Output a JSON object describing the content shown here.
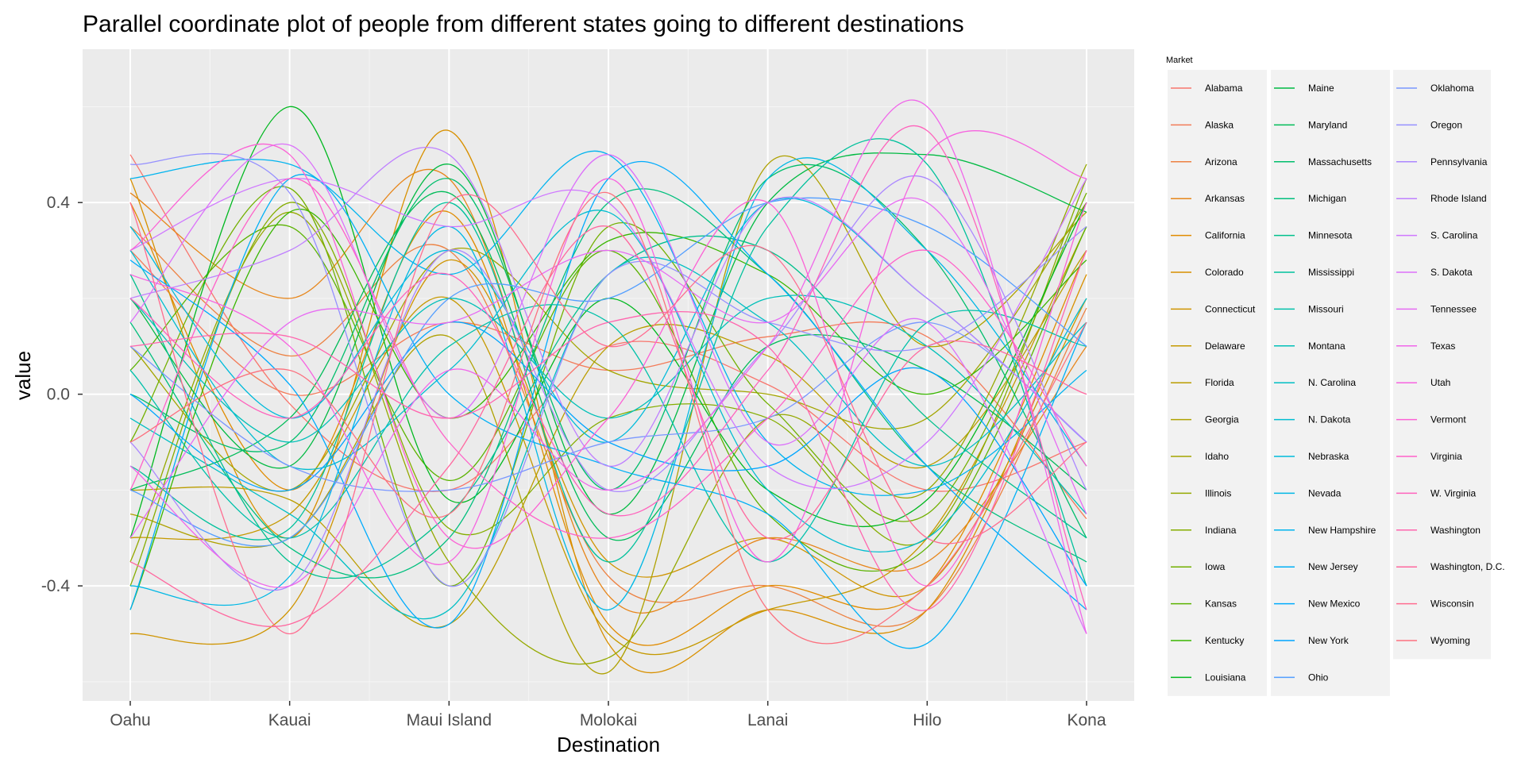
{
  "chart_data": {
    "type": "line",
    "title": "Parallel coordinate plot of people from different states going to different destinations",
    "xlabel": "Destination",
    "ylabel": "value",
    "categories": [
      "Oahu",
      "Kauai",
      "Maui Island",
      "Molokai",
      "Lanai",
      "Hilo",
      "Kona"
    ],
    "ylim": [
      -0.64,
      0.72
    ],
    "yticks": [
      -0.4,
      0.0,
      0.4
    ],
    "ytick_labels": [
      "-0.4",
      "0.0",
      "0.4"
    ],
    "grid": true,
    "legend_title": "Market",
    "legend_position": "right",
    "series": [
      {
        "name": "Alabama",
        "values": [
          0.5,
          -0.02,
          -0.2,
          0.1,
          0.02,
          -0.2,
          -0.1
        ]
      },
      {
        "name": "Alaska",
        "values": [
          0.3,
          0.0,
          0.15,
          0.05,
          0.12,
          0.12,
          -0.26
        ]
      },
      {
        "name": "Arizona",
        "values": [
          0.35,
          0.08,
          0.3,
          -0.38,
          -0.4,
          -0.45,
          0.18
        ]
      },
      {
        "name": "Arkansas",
        "values": [
          0.42,
          0.2,
          0.45,
          -0.42,
          -0.3,
          -0.35,
          0.1
        ]
      },
      {
        "name": "California",
        "values": [
          0.4,
          -0.2,
          0.38,
          -0.48,
          -0.4,
          -0.4,
          0.3
        ]
      },
      {
        "name": "Colorado",
        "values": [
          0.45,
          -0.3,
          0.55,
          -0.52,
          -0.45,
          -0.45,
          0.25
        ]
      },
      {
        "name": "Connecticut",
        "values": [
          -0.5,
          -0.45,
          0.28,
          -0.35,
          -0.3,
          -0.4,
          0.2
        ]
      },
      {
        "name": "Delaware",
        "values": [
          -0.3,
          -0.25,
          0.2,
          -0.5,
          -0.45,
          -0.3,
          0.35
        ]
      },
      {
        "name": "Florida",
        "values": [
          -0.2,
          -0.22,
          -0.48,
          0.1,
          0.08,
          -0.15,
          0.3
        ]
      },
      {
        "name": "Georgia",
        "values": [
          -0.25,
          -0.3,
          0.12,
          -0.58,
          0.48,
          0.1,
          0.38
        ]
      },
      {
        "name": "Idaho",
        "values": [
          0.1,
          -0.2,
          0.3,
          0.05,
          0.0,
          -0.05,
          0.4
        ]
      },
      {
        "name": "Illinois",
        "values": [
          -0.35,
          0.38,
          -0.35,
          -0.55,
          -0.05,
          -0.2,
          0.48
        ]
      },
      {
        "name": "Indiana",
        "values": [
          -0.4,
          0.4,
          -0.28,
          -0.05,
          -0.05,
          -0.3,
          0.45
        ]
      },
      {
        "name": "Iowa",
        "values": [
          -0.1,
          0.43,
          -0.4,
          0.35,
          -0.02,
          -0.25,
          0.42
        ]
      },
      {
        "name": "Kansas",
        "values": [
          0.05,
          0.35,
          -0.18,
          0.3,
          -0.25,
          -0.32,
          0.35
        ]
      },
      {
        "name": "Kentucky",
        "values": [
          -0.45,
          0.38,
          -0.05,
          0.32,
          0.25,
          0.0,
          0.28
        ]
      },
      {
        "name": "Louisiana",
        "values": [
          -0.3,
          0.6,
          -0.22,
          0.2,
          -0.2,
          -0.22,
          0.4
        ]
      },
      {
        "name": "Maine",
        "values": [
          0.2,
          -0.15,
          0.48,
          -0.25,
          0.4,
          0.5,
          0.38
        ]
      },
      {
        "name": "Maryland",
        "values": [
          -0.2,
          -0.05,
          0.42,
          -0.3,
          0.1,
          0.05,
          -0.2
        ]
      },
      {
        "name": "Massachusetts",
        "values": [
          0.0,
          -0.1,
          0.45,
          -0.2,
          0.45,
          0.3,
          -0.3
        ]
      },
      {
        "name": "Michigan",
        "values": [
          0.15,
          -0.32,
          -0.3,
          0.4,
          0.25,
          -0.15,
          -0.35
        ]
      },
      {
        "name": "Minnesota",
        "values": [
          0.25,
          -0.35,
          -0.25,
          0.25,
          0.3,
          -0.05,
          -0.3
        ]
      },
      {
        "name": "Mississippi",
        "values": [
          -0.15,
          -0.28,
          0.4,
          -0.35,
          0.35,
          0.48,
          -0.4
        ]
      },
      {
        "name": "Missouri",
        "values": [
          0.05,
          -0.3,
          0.1,
          0.15,
          -0.35,
          0.15,
          0.1
        ]
      },
      {
        "name": "Montana",
        "values": [
          0.2,
          -0.1,
          0.2,
          -0.05,
          0.2,
          0.1,
          -0.25
        ]
      },
      {
        "name": "N. Carolina",
        "values": [
          -0.05,
          -0.25,
          -0.45,
          0.25,
          0.15,
          -0.15,
          0.15
        ]
      },
      {
        "name": "N. Dakota",
        "values": [
          0.3,
          -0.15,
          0.05,
          0.38,
          -0.2,
          -0.3,
          0.2
        ]
      },
      {
        "name": "Nebraska",
        "values": [
          0.35,
          -0.05,
          0.3,
          -0.1,
          0.4,
          0.2,
          -0.1
        ]
      },
      {
        "name": "Nevada",
        "values": [
          -0.4,
          -0.38,
          0.35,
          -0.45,
          0.45,
          0.3,
          -0.15
        ]
      },
      {
        "name": "New Hampshire",
        "values": [
          0.45,
          0.48,
          0.25,
          0.5,
          -0.1,
          -0.2,
          0.05
        ]
      },
      {
        "name": "New Jersey",
        "values": [
          -0.45,
          0.45,
          0.0,
          -0.15,
          -0.25,
          -0.52,
          0.15
        ]
      },
      {
        "name": "New Mexico",
        "values": [
          0.28,
          0.02,
          -0.48,
          0.45,
          0.25,
          -0.15,
          -0.45
        ]
      },
      {
        "name": "New York",
        "values": [
          0.0,
          -0.2,
          0.15,
          -0.1,
          -0.15,
          0.05,
          -0.4
        ]
      },
      {
        "name": "Ohio",
        "values": [
          -0.2,
          -0.3,
          0.2,
          0.2,
          0.4,
          0.35,
          0.1
        ]
      },
      {
        "name": "Oklahoma",
        "values": [
          0.1,
          -0.15,
          -0.2,
          -0.1,
          -0.05,
          0.15,
          -0.1
        ]
      },
      {
        "name": "Oregon",
        "values": [
          0.48,
          0.42,
          -0.4,
          0.25,
          0.15,
          0.1,
          0.35
        ]
      },
      {
        "name": "Pennsylvania",
        "values": [
          -0.1,
          -0.4,
          0.3,
          -0.2,
          0.1,
          0.45,
          -0.2
        ]
      },
      {
        "name": "Rhode Island",
        "values": [
          0.2,
          0.3,
          0.5,
          -0.15,
          0.4,
          0.2,
          -0.1
        ]
      },
      {
        "name": "S. Carolina",
        "values": [
          0.3,
          0.45,
          0.35,
          0.4,
          -0.15,
          -0.1,
          0.45
        ]
      },
      {
        "name": "S. Dakota",
        "values": [
          0.15,
          0.52,
          -0.05,
          0.5,
          -0.1,
          0.15,
          -0.5
        ]
      },
      {
        "name": "Tennessee",
        "values": [
          -0.3,
          0.15,
          0.15,
          0.3,
          0.15,
          0.4,
          -0.25
        ]
      },
      {
        "name": "Texas",
        "values": [
          -0.15,
          -0.4,
          0.05,
          -0.2,
          0.1,
          0.6,
          -0.5
        ]
      },
      {
        "name": "Utah",
        "values": [
          0.25,
          0.1,
          -0.35,
          0.45,
          -0.35,
          0.5,
          0.45
        ]
      },
      {
        "name": "Vermont",
        "values": [
          0.3,
          0.5,
          -0.3,
          -0.05,
          0.4,
          -0.4,
          0.4
        ]
      },
      {
        "name": "Virginia",
        "values": [
          -0.2,
          0.45,
          -0.1,
          -0.3,
          -0.05,
          0.3,
          -0.15
        ]
      },
      {
        "name": "W. Virginia",
        "values": [
          0.2,
          -0.05,
          0.25,
          -0.25,
          0.05,
          0.55,
          -0.45
        ]
      },
      {
        "name": "Washington",
        "values": [
          0.1,
          0.12,
          -0.05,
          0.15,
          0.1,
          -0.45,
          0.3
        ]
      },
      {
        "name": "Washington, D.C.",
        "values": [
          -0.35,
          -0.48,
          -0.15,
          0.35,
          -0.3,
          0.1,
          0.0
        ]
      },
      {
        "name": "Wisconsin",
        "values": [
          0.4,
          -0.5,
          0.4,
          0.1,
          0.3,
          -0.3,
          -0.1
        ]
      },
      {
        "name": "Wyoming",
        "values": [
          -0.1,
          0.05,
          -0.25,
          0.42,
          -0.45,
          -0.4,
          0.15
        ]
      }
    ]
  }
}
